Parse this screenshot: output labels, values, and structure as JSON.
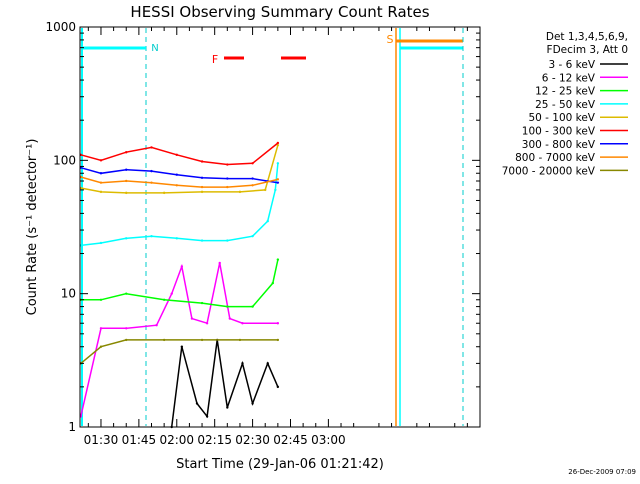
{
  "chart_data": {
    "type": "line",
    "title": "HESSI Observing Summary Count Rates",
    "xlabel": "Start Time (29-Jan-06 01:21:42)",
    "ylabel": "Count Rate (s⁻¹ detector⁻¹)",
    "y_scale": "log",
    "ylim": [
      1,
      1000
    ],
    "xlim_minutes_after_0100": [
      21.7,
      180
    ],
    "x_tick_labels": [
      "01:30",
      "01:45",
      "02:00",
      "02:15",
      "02:30",
      "02:45",
      "03:00"
    ],
    "x_tick_minutes_after_0100": [
      30,
      45,
      60,
      75,
      90,
      105,
      120
    ],
    "y_tick_labels": [
      "1",
      "10",
      "100",
      "1000"
    ],
    "y_tick_values": [
      1,
      10,
      100,
      1000
    ],
    "grid": false,
    "legend_position": "right",
    "legend_header": [
      "Det 1,3,4,5,6,9,",
      "FDecim 3, Att 0"
    ],
    "series": [
      {
        "name": "3 - 6 keV",
        "color": "#000000",
        "x": [
          58,
          62,
          68,
          72,
          76,
          80,
          86,
          90,
          96,
          100
        ],
        "y": [
          1,
          4,
          1.5,
          1.2,
          4.5,
          1.4,
          3,
          1.5,
          3,
          2
        ]
      },
      {
        "name": "6 - 12 keV",
        "color": "#ff00ff",
        "x": [
          22,
          30,
          40,
          52,
          58,
          62,
          66,
          72,
          77,
          81,
          86,
          100
        ],
        "y": [
          1.2,
          5.5,
          5.5,
          5.8,
          10,
          16,
          6.5,
          6,
          17,
          6.5,
          6,
          6
        ]
      },
      {
        "name": "12 - 25 keV",
        "color": "#00ff00",
        "x": [
          22,
          30,
          40,
          55,
          70,
          80,
          90,
          98,
          100
        ],
        "y": [
          9,
          9,
          10,
          9,
          8.5,
          8,
          8,
          12,
          18
        ]
      },
      {
        "name": "25 - 50 keV",
        "color": "#00ffff",
        "x": [
          22,
          30,
          40,
          50,
          60,
          70,
          80,
          90,
          96,
          99,
          100
        ],
        "y": [
          23,
          24,
          26,
          27,
          26,
          25,
          25,
          27,
          35,
          60,
          95
        ]
      },
      {
        "name": "50 - 100 keV",
        "color": "#ddbb00",
        "x": [
          22,
          30,
          40,
          55,
          70,
          85,
          95,
          100
        ],
        "y": [
          62,
          58,
          57,
          57,
          58,
          58,
          60,
          130
        ]
      },
      {
        "name": "100 - 300 keV",
        "color": "#ff0000",
        "x": [
          22,
          30,
          40,
          50,
          60,
          70,
          80,
          90,
          100
        ],
        "y": [
          110,
          100,
          115,
          125,
          110,
          98,
          93,
          95,
          135
        ]
      },
      {
        "name": "300 - 800 keV",
        "color": "#0000ff",
        "x": [
          22,
          30,
          40,
          50,
          60,
          70,
          80,
          90,
          100
        ],
        "y": [
          88,
          80,
          85,
          83,
          78,
          74,
          73,
          73,
          68
        ]
      },
      {
        "name": "800 - 7000 keV",
        "color": "#ff8800",
        "x": [
          22,
          30,
          40,
          50,
          60,
          70,
          80,
          90,
          100
        ],
        "y": [
          75,
          68,
          70,
          68,
          65,
          63,
          63,
          65,
          72
        ]
      },
      {
        "name": "7000 - 20000 keV",
        "color": "#888800",
        "x": [
          22,
          30,
          40,
          55,
          70,
          85,
          100
        ],
        "y": [
          3,
          4,
          4.5,
          4.5,
          4.5,
          4.5,
          4.5
        ]
      }
    ],
    "annotations": {
      "night_label": "N",
      "saa_label": "S",
      "flare_label": "F",
      "timestamp": "26-Dec-2009 07:09"
    }
  }
}
